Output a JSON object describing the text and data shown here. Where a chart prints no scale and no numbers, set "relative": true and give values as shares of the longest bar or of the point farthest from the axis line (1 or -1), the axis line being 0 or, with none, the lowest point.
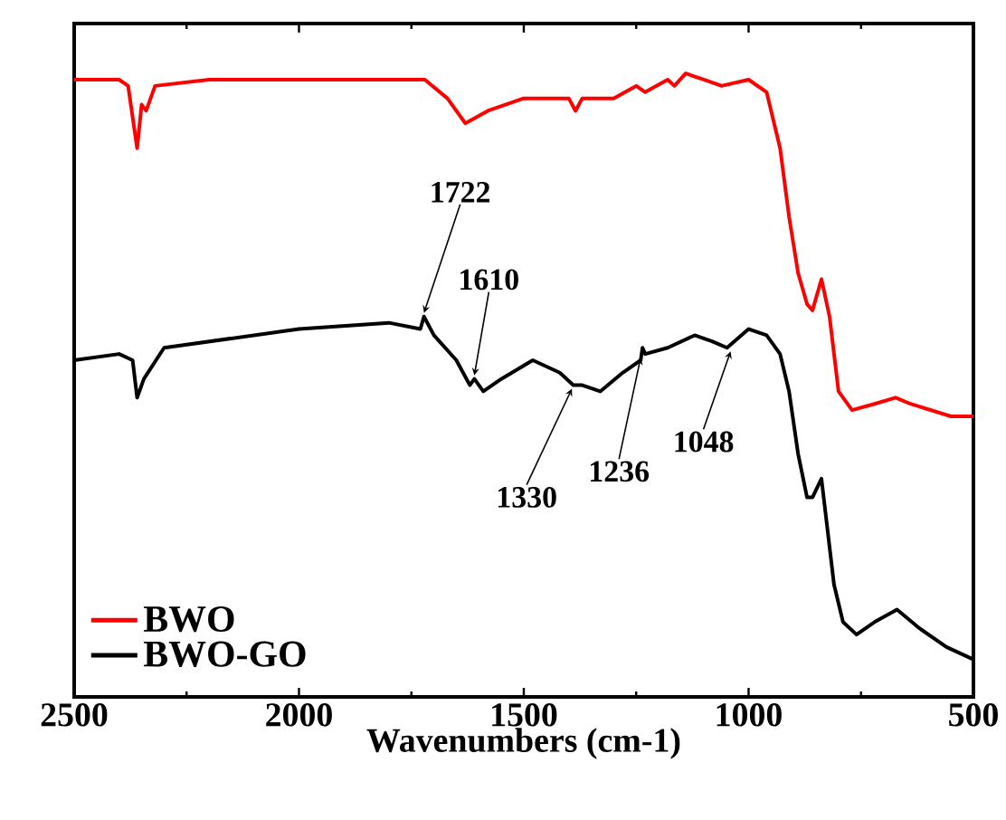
{
  "chart_data": {
    "type": "line",
    "xlabel": "Wavenumbers (cm-1)",
    "relative": true,
    "xlim": [
      2500,
      500
    ],
    "xticks": [
      2500,
      2000,
      1500,
      1000,
      500
    ],
    "legend": "bottom left",
    "grid": false,
    "marker": "none",
    "line_style": "solid",
    "series": [
      {
        "name": "BWO",
        "color": "#ff0000",
        "x": [
          2500,
          2400,
          2380,
          2360,
          2350,
          2340,
          2320,
          2200,
          2000,
          1800,
          1720,
          1670,
          1630,
          1580,
          1500,
          1400,
          1385,
          1370,
          1300,
          1250,
          1230,
          1180,
          1165,
          1140,
          1100,
          1060,
          1000,
          960,
          930,
          910,
          890,
          870,
          858,
          838,
          820,
          800,
          770,
          720,
          673,
          640,
          550,
          500
        ],
        "values": [
          0.99,
          0.99,
          0.98,
          0.88,
          0.95,
          0.94,
          0.98,
          0.99,
          0.99,
          0.99,
          0.99,
          0.96,
          0.92,
          0.94,
          0.96,
          0.96,
          0.94,
          0.96,
          0.96,
          0.98,
          0.97,
          0.99,
          0.98,
          1.0,
          0.99,
          0.98,
          0.99,
          0.97,
          0.88,
          0.77,
          0.68,
          0.63,
          0.62,
          0.67,
          0.61,
          0.49,
          0.46,
          0.47,
          0.48,
          0.47,
          0.45,
          0.45
        ]
      },
      {
        "name": "BWO-GO",
        "color": "#000000",
        "x": [
          2500,
          2400,
          2370,
          2360,
          2345,
          2300,
          2000,
          1800,
          1730,
          1722,
          1700,
          1650,
          1620,
          1610,
          1590,
          1550,
          1480,
          1420,
          1390,
          1370,
          1330,
          1280,
          1240,
          1236,
          1230,
          1180,
          1120,
          1080,
          1048,
          1000,
          960,
          930,
          910,
          890,
          870,
          858,
          838,
          810,
          790,
          760,
          720,
          670,
          620,
          560,
          500
        ],
        "values": [
          0.54,
          0.55,
          0.54,
          0.48,
          0.51,
          0.56,
          0.59,
          0.6,
          0.59,
          0.61,
          0.58,
          0.54,
          0.5,
          0.51,
          0.49,
          0.51,
          0.54,
          0.52,
          0.5,
          0.5,
          0.49,
          0.52,
          0.54,
          0.56,
          0.55,
          0.56,
          0.58,
          0.57,
          0.56,
          0.59,
          0.58,
          0.55,
          0.49,
          0.39,
          0.32,
          0.32,
          0.35,
          0.18,
          0.12,
          0.1,
          0.12,
          0.14,
          0.11,
          0.08,
          0.06
        ]
      }
    ],
    "annotations": [
      {
        "text": "1722",
        "x": 1722,
        "y": 0.61
      },
      {
        "text": "1610",
        "x": 1610,
        "y": 0.51
      },
      {
        "text": "1330",
        "x": 1393,
        "y": 0.5
      },
      {
        "text": "1236",
        "x": 1240,
        "y": 0.55
      },
      {
        "text": "1048",
        "x": 1040,
        "y": 0.56
      }
    ]
  }
}
